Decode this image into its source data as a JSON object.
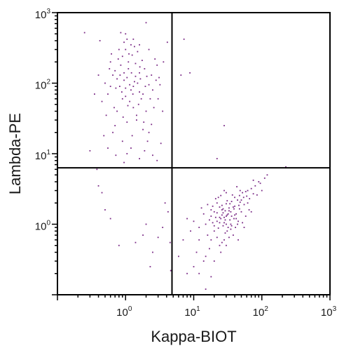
{
  "chart_data": {
    "type": "scatter",
    "title": "",
    "xlabel": "Kappa-BIOT",
    "ylabel": "Lambda-PE",
    "xscale": "log",
    "yscale": "log",
    "xlim": [
      0.1,
      1000
    ],
    "ylim": [
      0.1,
      1000
    ],
    "grid": false,
    "legend": "none",
    "x_ticks": [
      {
        "base": "10",
        "exp": "0",
        "value": 1
      },
      {
        "base": "10",
        "exp": "1",
        "value": 10
      },
      {
        "base": "10",
        "exp": "2",
        "value": 100
      },
      {
        "base": "10",
        "exp": "3",
        "value": 1000
      }
    ],
    "y_ticks": [
      {
        "base": "10",
        "exp": "0",
        "value": 1
      },
      {
        "base": "10",
        "exp": "1",
        "value": 10
      },
      {
        "base": "10",
        "exp": "2",
        "value": 100
      },
      {
        "base": "10",
        "exp": "3",
        "value": 1000
      }
    ],
    "quadrant_gates": {
      "x": 4.8,
      "y": 6.3
    },
    "point_color": "#7a2a86",
    "points": [
      [
        0.82,
        90
      ],
      [
        1.05,
        120
      ],
      [
        1.2,
        80
      ],
      [
        0.9,
        60
      ],
      [
        1.5,
        100
      ],
      [
        0.7,
        150
      ],
      [
        1.1,
        200
      ],
      [
        1.3,
        45
      ],
      [
        0.95,
        110
      ],
      [
        1.8,
        70
      ],
      [
        0.6,
        90
      ],
      [
        1.0,
        300
      ],
      [
        1.25,
        250
      ],
      [
        0.85,
        180
      ],
      [
        1.6,
        140
      ],
      [
        2.2,
        95
      ],
      [
        0.75,
        40
      ],
      [
        1.15,
        55
      ],
      [
        1.4,
        190
      ],
      [
        0.65,
        130
      ],
      [
        1.7,
        60
      ],
      [
        2.5,
        80
      ],
      [
        0.55,
        70
      ],
      [
        1.0,
        85
      ],
      [
        1.35,
        105
      ],
      [
        0.9,
        240
      ],
      [
        1.9,
        160
      ],
      [
        2.8,
        110
      ],
      [
        0.5,
        100
      ],
      [
        1.2,
        350
      ],
      [
        1.05,
        420
      ],
      [
        0.8,
        300
      ],
      [
        1.45,
        30
      ],
      [
        0.7,
        25
      ],
      [
        2.0,
        40
      ],
      [
        3.0,
        60
      ],
      [
        0.45,
        55
      ],
      [
        1.6,
        75
      ],
      [
        1.1,
        160
      ],
      [
        0.95,
        140
      ],
      [
        1.3,
        90
      ],
      [
        2.4,
        130
      ],
      [
        0.6,
        200
      ],
      [
        1.0,
        500
      ],
      [
        0.85,
        520
      ],
      [
        1.5,
        280
      ],
      [
        0.35,
        70
      ],
      [
        0.4,
        130
      ],
      [
        2.6,
        45
      ],
      [
        3.5,
        40
      ],
      [
        1.8,
        22
      ],
      [
        0.65,
        20
      ],
      [
        1.25,
        18
      ],
      [
        0.9,
        15
      ],
      [
        1.05,
        10
      ],
      [
        0.55,
        12
      ],
      [
        2.1,
        15
      ],
      [
        0.3,
        11
      ],
      [
        3.2,
        95
      ],
      [
        2.9,
        180
      ],
      [
        1.4,
        125
      ],
      [
        0.75,
        115
      ],
      [
        1.15,
        95
      ],
      [
        0.88,
        75
      ],
      [
        1.65,
        115
      ],
      [
        2.3,
        60
      ],
      [
        1.0,
        65
      ],
      [
        0.72,
        85
      ],
      [
        1.55,
        50
      ],
      [
        1.22,
        140
      ],
      [
        0.58,
        160
      ],
      [
        1.75,
        210
      ],
      [
        2.7,
        220
      ],
      [
        1.35,
        330
      ],
      [
        0.95,
        380
      ],
      [
        1.12,
        260
      ],
      [
        0.78,
        220
      ],
      [
        1.62,
        170
      ],
      [
        2.05,
        125
      ],
      [
        0.68,
        45
      ],
      [
        1.45,
        35
      ],
      [
        0.92,
        33
      ],
      [
        1.85,
        28
      ],
      [
        2.4,
        26
      ],
      [
        1.05,
        28
      ],
      [
        0.52,
        35
      ],
      [
        3.1,
        120
      ],
      [
        3.6,
        200
      ],
      [
        4.1,
        380
      ],
      [
        0.25,
        520
      ],
      [
        2.0,
        720
      ],
      [
        0.42,
        400
      ],
      [
        1.3,
        420
      ],
      [
        1.6,
        350
      ],
      [
        0.62,
        260
      ],
      [
        2.2,
        300
      ],
      [
        1.95,
        90
      ],
      [
        1.08,
        48
      ],
      [
        0.83,
        130
      ],
      [
        1.28,
        70
      ],
      [
        25,
        1.2
      ],
      [
        30,
        1.0
      ],
      [
        20,
        0.8
      ],
      [
        35,
        1.5
      ],
      [
        40,
        1.8
      ],
      [
        28,
        0.6
      ],
      [
        18,
        1.3
      ],
      [
        45,
        1.1
      ],
      [
        22,
        2.0
      ],
      [
        32,
        0.9
      ],
      [
        50,
        2.2
      ],
      [
        15,
        1.0
      ],
      [
        26,
        1.6
      ],
      [
        38,
        0.7
      ],
      [
        60,
        2.5
      ],
      [
        12,
        0.9
      ],
      [
        42,
        1.4
      ],
      [
        24,
        0.5
      ],
      [
        55,
        1.9
      ],
      [
        30,
        2.8
      ],
      [
        20,
        1.5
      ],
      [
        35,
        0.85
      ],
      [
        28,
        1.25
      ],
      [
        48,
        3.0
      ],
      [
        70,
        3.2
      ],
      [
        16,
        0.7
      ],
      [
        40,
        2.4
      ],
      [
        65,
        1.6
      ],
      [
        22,
        1.1
      ],
      [
        33,
        1.7
      ],
      [
        27,
        0.95
      ],
      [
        19,
        1.8
      ],
      [
        44,
        1.0
      ],
      [
        36,
        2.1
      ],
      [
        52,
        2.8
      ],
      [
        80,
        3.5
      ],
      [
        14,
        1.4
      ],
      [
        29,
        0.75
      ],
      [
        58,
        1.3
      ],
      [
        23,
        2.4
      ],
      [
        31,
        1.35
      ],
      [
        26,
        0.55
      ],
      [
        47,
        1.65
      ],
      [
        39,
        1.2
      ],
      [
        62,
        2.0
      ],
      [
        18,
        0.6
      ],
      [
        34,
        1.95
      ],
      [
        24,
        1.05
      ],
      [
        41,
        0.9
      ],
      [
        75,
        2.7
      ],
      [
        10,
        1.1
      ],
      [
        12,
        0.6
      ],
      [
        9,
        0.8
      ],
      [
        8,
        1.2
      ],
      [
        11,
        0.4
      ],
      [
        15,
        0.35
      ],
      [
        20,
        0.3
      ],
      [
        25,
        0.4
      ],
      [
        17,
        0.45
      ],
      [
        14,
        0.3
      ],
      [
        30,
        0.5
      ],
      [
        22,
        0.65
      ],
      [
        90,
        4.0
      ],
      [
        100,
        3.0
      ],
      [
        110,
        4.5
      ],
      [
        85,
        2.6
      ],
      [
        120,
        5.0
      ],
      [
        45,
        0.6
      ],
      [
        55,
        0.9
      ],
      [
        70,
        1.5
      ],
      [
        13,
        1.7
      ],
      [
        21,
        2.3
      ],
      [
        37,
        2.6
      ],
      [
        28,
        3.0
      ],
      [
        16,
        1.9
      ],
      [
        43,
        3.4
      ],
      [
        33,
        0.65
      ],
      [
        27,
        1.45
      ],
      [
        19,
        1.05
      ],
      [
        52,
        1.05
      ],
      [
        36,
        1.3
      ],
      [
        24,
        1.75
      ],
      [
        48,
        2.05
      ],
      [
        31,
        2.15
      ],
      [
        66,
        2.3
      ],
      [
        58,
        2.9
      ],
      [
        26,
        1.35
      ],
      [
        29,
        1.55
      ],
      [
        34,
        1.15
      ],
      [
        21,
        1.25
      ],
      [
        39,
        1.65
      ],
      [
        46,
        1.85
      ],
      [
        23,
        0.88
      ],
      [
        30,
        1.95
      ],
      [
        25,
        2.55
      ],
      [
        50,
        1.5
      ],
      [
        42,
        1.2
      ],
      [
        17,
        1.15
      ],
      [
        35,
        1.0
      ],
      [
        28,
        1.05
      ],
      [
        32,
        1.4
      ],
      [
        27,
        1.65
      ],
      [
        38,
        1.75
      ],
      [
        44,
        2.2
      ],
      [
        20,
        0.95
      ],
      [
        26,
        1.85
      ],
      [
        36,
        0.95
      ],
      [
        24,
        1.25
      ],
      [
        30,
        1.3
      ],
      [
        33,
        1.55
      ],
      [
        40,
        1.35
      ],
      [
        22,
        1.45
      ],
      [
        29,
        1.15
      ],
      [
        31,
        0.8
      ],
      [
        18,
        1.6
      ],
      [
        54,
        2.4
      ],
      [
        47,
        2.55
      ],
      [
        62,
        3.0
      ],
      [
        95,
        3.8
      ],
      [
        75,
        4.2
      ],
      [
        225,
        6.5
      ],
      [
        28,
        25
      ],
      [
        22,
        8.5
      ],
      [
        15,
        0.12
      ],
      [
        8,
        0.2
      ],
      [
        10,
        0.25
      ],
      [
        6,
        0.35
      ],
      [
        7,
        0.6
      ],
      [
        12,
        0.2
      ],
      [
        18,
        0.18
      ],
      [
        3.8,
        2.0
      ],
      [
        4.2,
        1.5
      ],
      [
        3.5,
        0.9
      ],
      [
        2.0,
        1.0
      ],
      [
        1.4,
        0.55
      ],
      [
        0.8,
        0.5
      ],
      [
        2.5,
        0.4
      ],
      [
        1.8,
        0.7
      ],
      [
        3.0,
        0.65
      ],
      [
        4.5,
        0.55
      ],
      [
        0.45,
        2.8
      ],
      [
        0.5,
        1.6
      ],
      [
        0.6,
        1.2
      ],
      [
        0.4,
        3.5
      ],
      [
        2.3,
        0.25
      ],
      [
        4.6,
        0.22
      ],
      [
        0.38,
        6.0
      ],
      [
        7.2,
        420
      ],
      [
        6.5,
        130
      ],
      [
        8.8,
        140
      ],
      [
        0.95,
        7.5
      ],
      [
        1.6,
        8.5
      ],
      [
        2.5,
        9.5
      ],
      [
        1.2,
        12
      ],
      [
        3.3,
        14
      ],
      [
        0.72,
        9.5
      ],
      [
        2.2,
        20
      ],
      [
        0.48,
        18
      ],
      [
        1.9,
        11
      ],
      [
        2.9,
        8.0
      ]
    ]
  }
}
